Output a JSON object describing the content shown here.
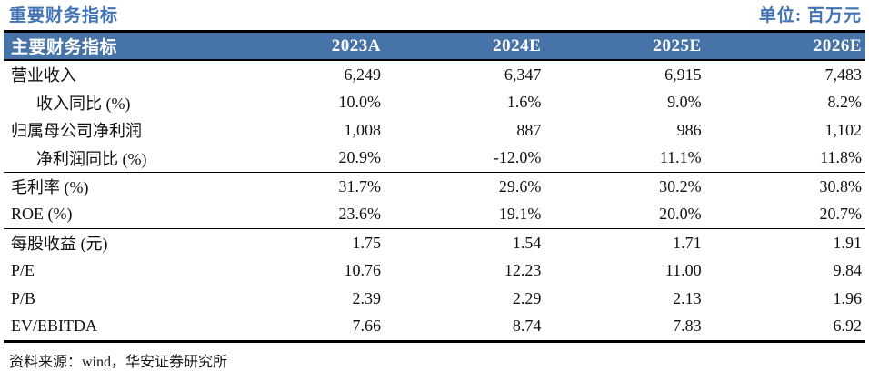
{
  "caption": {
    "title": "重要财务指标",
    "unit_label": "单位: 百万元"
  },
  "colors": {
    "header_background": "#4674A8",
    "caption_blue": "#4273B4",
    "rule_black": "#000000"
  },
  "table": {
    "header": [
      "主要财务指标",
      "2023A",
      "2024E",
      "2025E",
      "2026E"
    ],
    "rows": [
      {
        "label": "营业收入",
        "indent": false,
        "divider_below": false,
        "values": [
          "6,249",
          "6,347",
          "6,915",
          "7,483"
        ]
      },
      {
        "label": "收入同比 (%)",
        "indent": true,
        "divider_below": false,
        "values": [
          "10.0%",
          "1.6%",
          "9.0%",
          "8.2%"
        ]
      },
      {
        "label": "归属母公司净利润",
        "indent": false,
        "divider_below": false,
        "values": [
          "1,008",
          "887",
          "986",
          "1,102"
        ]
      },
      {
        "label": "净利润同比 (%)",
        "indent": true,
        "divider_below": true,
        "values": [
          "20.9%",
          "-12.0%",
          "11.1%",
          "11.8%"
        ]
      },
      {
        "label": "毛利率 (%)",
        "indent": false,
        "divider_below": false,
        "values": [
          "31.7%",
          "29.6%",
          "30.2%",
          "30.8%"
        ]
      },
      {
        "label": "ROE (%)",
        "indent": false,
        "divider_below": true,
        "values": [
          "23.6%",
          "19.1%",
          "20.0%",
          "20.7%"
        ]
      },
      {
        "label": "每股收益 (元)",
        "indent": false,
        "divider_below": false,
        "values": [
          "1.75",
          "1.54",
          "1.71",
          "1.91"
        ]
      },
      {
        "label": "P/E",
        "indent": false,
        "divider_below": false,
        "values": [
          "10.76",
          "12.23",
          "11.00",
          "9.84"
        ]
      },
      {
        "label": "P/B",
        "indent": false,
        "divider_below": false,
        "values": [
          "2.39",
          "2.29",
          "2.13",
          "1.96"
        ]
      },
      {
        "label": "EV/EBITDA",
        "indent": false,
        "divider_below": false,
        "values": [
          "7.66",
          "8.74",
          "7.83",
          "6.92"
        ]
      }
    ]
  },
  "source": "资料来源：wind，华安证券研究所"
}
